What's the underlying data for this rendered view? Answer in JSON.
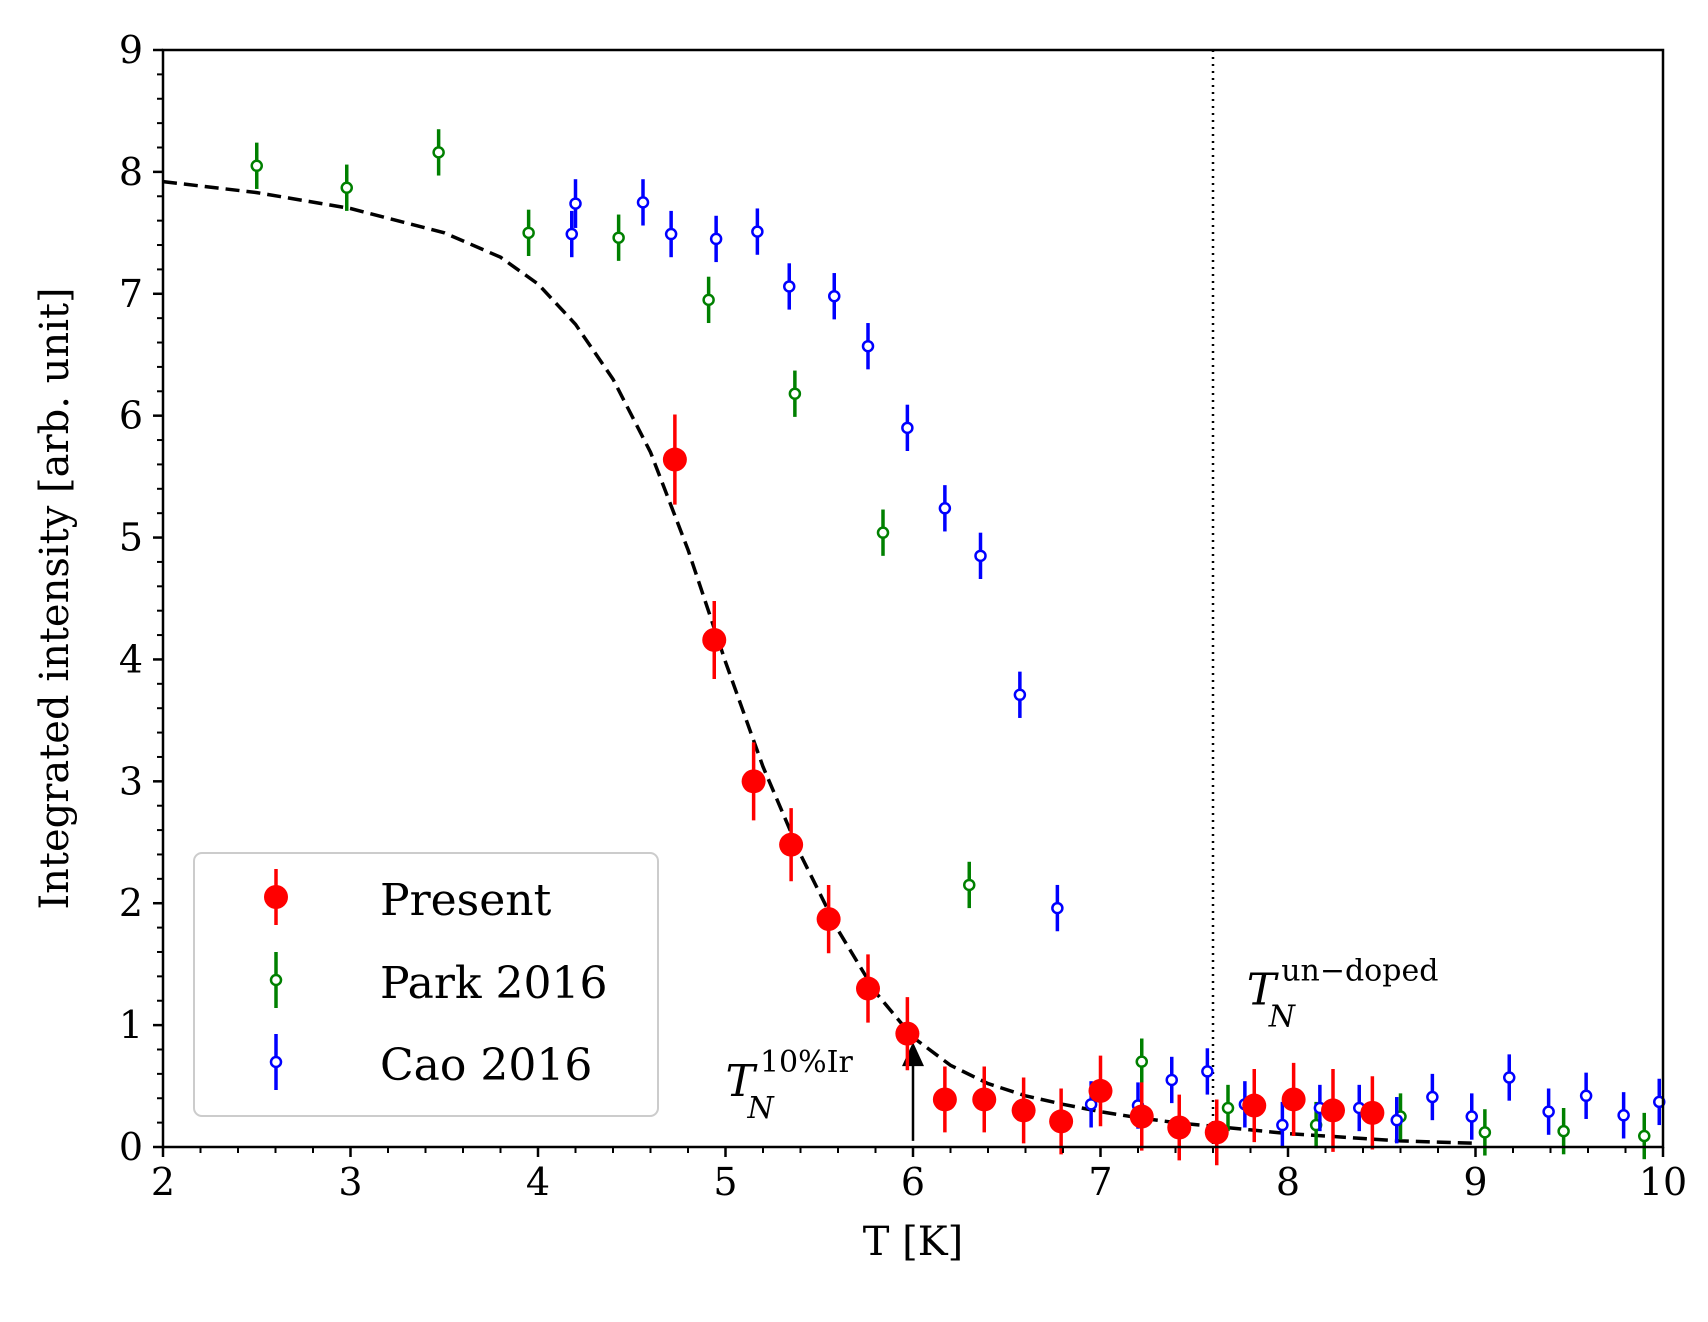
{
  "chart_data": {
    "type": "scatter",
    "title": "",
    "xlabel": "T [K]",
    "ylabel": "Integrated intensity [arb. unit]",
    "xlim": [
      2,
      10
    ],
    "ylim": [
      0,
      9
    ],
    "xticks": [
      2,
      3,
      4,
      5,
      6,
      7,
      8,
      9,
      10
    ],
    "yticks": [
      0,
      1,
      2,
      3,
      4,
      5,
      6,
      7,
      8,
      9
    ],
    "grid": false,
    "legend_position": "lower-left",
    "colors": {
      "present": "#ff0000",
      "park": "#008000",
      "cao": "#0000ff",
      "fit": "#000000",
      "vline": "#000000"
    },
    "series": [
      {
        "name": "Present",
        "marker": "filled-circle",
        "color": "#ff0000",
        "points": [
          {
            "x": 4.73,
            "y": 5.64,
            "err": 0.37
          },
          {
            "x": 4.94,
            "y": 4.16,
            "err": 0.32
          },
          {
            "x": 5.15,
            "y": 3.0,
            "err": 0.32
          },
          {
            "x": 5.35,
            "y": 2.48,
            "err": 0.3
          },
          {
            "x": 5.55,
            "y": 1.87,
            "err": 0.28
          },
          {
            "x": 5.76,
            "y": 1.3,
            "err": 0.28
          },
          {
            "x": 5.97,
            "y": 0.93,
            "err": 0.3
          },
          {
            "x": 6.17,
            "y": 0.39,
            "err": 0.27
          },
          {
            "x": 6.38,
            "y": 0.39,
            "err": 0.27
          },
          {
            "x": 6.59,
            "y": 0.3,
            "err": 0.27
          },
          {
            "x": 6.79,
            "y": 0.21,
            "err": 0.27
          },
          {
            "x": 7.0,
            "y": 0.46,
            "err": 0.29
          },
          {
            "x": 7.22,
            "y": 0.25,
            "err": 0.28
          },
          {
            "x": 7.42,
            "y": 0.16,
            "err": 0.27
          },
          {
            "x": 7.62,
            "y": 0.12,
            "err": 0.27
          },
          {
            "x": 7.82,
            "y": 0.34,
            "err": 0.3
          },
          {
            "x": 8.03,
            "y": 0.39,
            "err": 0.3
          },
          {
            "x": 8.24,
            "y": 0.3,
            "err": 0.34
          },
          {
            "x": 8.45,
            "y": 0.28,
            "err": 0.3
          }
        ]
      },
      {
        "name": "Park 2016",
        "marker": "open-circle",
        "color": "#008000",
        "points": [
          {
            "x": 2.5,
            "y": 8.05,
            "err": 0.19
          },
          {
            "x": 2.98,
            "y": 7.87,
            "err": 0.19
          },
          {
            "x": 3.47,
            "y": 8.16,
            "err": 0.19
          },
          {
            "x": 3.95,
            "y": 7.5,
            "err": 0.19
          },
          {
            "x": 4.43,
            "y": 7.46,
            "err": 0.19
          },
          {
            "x": 4.91,
            "y": 6.95,
            "err": 0.19
          },
          {
            "x": 5.37,
            "y": 6.18,
            "err": 0.19
          },
          {
            "x": 5.84,
            "y": 5.04,
            "err": 0.19
          },
          {
            "x": 6.3,
            "y": 2.15,
            "err": 0.19
          },
          {
            "x": 7.22,
            "y": 0.7,
            "err": 0.19
          },
          {
            "x": 7.68,
            "y": 0.32,
            "err": 0.19
          },
          {
            "x": 8.15,
            "y": 0.18,
            "err": 0.19
          },
          {
            "x": 8.6,
            "y": 0.25,
            "err": 0.19
          },
          {
            "x": 9.05,
            "y": 0.12,
            "err": 0.19
          },
          {
            "x": 9.47,
            "y": 0.13,
            "err": 0.19
          },
          {
            "x": 9.9,
            "y": 0.09,
            "err": 0.19
          }
        ]
      },
      {
        "name": "Cao 2016",
        "marker": "open-circle",
        "color": "#0000ff",
        "points": [
          {
            "x": 4.18,
            "y": 7.49,
            "err": 0.19
          },
          {
            "x": 4.2,
            "y": 7.74,
            "err": 0.2
          },
          {
            "x": 4.56,
            "y": 7.75,
            "err": 0.19
          },
          {
            "x": 4.71,
            "y": 7.49,
            "err": 0.19
          },
          {
            "x": 4.95,
            "y": 7.45,
            "err": 0.19
          },
          {
            "x": 5.17,
            "y": 7.51,
            "err": 0.19
          },
          {
            "x": 5.34,
            "y": 7.06,
            "err": 0.19
          },
          {
            "x": 5.58,
            "y": 6.98,
            "err": 0.19
          },
          {
            "x": 5.76,
            "y": 6.57,
            "err": 0.19
          },
          {
            "x": 5.97,
            "y": 5.9,
            "err": 0.19
          },
          {
            "x": 6.17,
            "y": 5.24,
            "err": 0.19
          },
          {
            "x": 6.36,
            "y": 4.85,
            "err": 0.19
          },
          {
            "x": 6.57,
            "y": 3.71,
            "err": 0.19
          },
          {
            "x": 6.77,
            "y": 1.96,
            "err": 0.19
          },
          {
            "x": 6.95,
            "y": 0.35,
            "err": 0.19
          },
          {
            "x": 7.2,
            "y": 0.34,
            "err": 0.19
          },
          {
            "x": 7.38,
            "y": 0.55,
            "err": 0.19
          },
          {
            "x": 7.57,
            "y": 0.62,
            "err": 0.19
          },
          {
            "x": 7.77,
            "y": 0.35,
            "err": 0.19
          },
          {
            "x": 7.97,
            "y": 0.18,
            "err": 0.19
          },
          {
            "x": 8.17,
            "y": 0.32,
            "err": 0.19
          },
          {
            "x": 8.38,
            "y": 0.32,
            "err": 0.19
          },
          {
            "x": 8.58,
            "y": 0.22,
            "err": 0.19
          },
          {
            "x": 8.77,
            "y": 0.41,
            "err": 0.19
          },
          {
            "x": 8.98,
            "y": 0.25,
            "err": 0.19
          },
          {
            "x": 9.18,
            "y": 0.57,
            "err": 0.19
          },
          {
            "x": 9.39,
            "y": 0.29,
            "err": 0.19
          },
          {
            "x": 9.59,
            "y": 0.42,
            "err": 0.19
          },
          {
            "x": 9.79,
            "y": 0.26,
            "err": 0.19
          },
          {
            "x": 9.98,
            "y": 0.37,
            "err": 0.19
          }
        ]
      }
    ],
    "fit_curve": {
      "style": "dashed",
      "x": [
        2.0,
        2.5,
        3.0,
        3.5,
        3.8,
        4.0,
        4.2,
        4.4,
        4.6,
        4.8,
        5.0,
        5.2,
        5.4,
        5.6,
        5.8,
        6.0,
        6.2,
        6.4,
        6.6,
        6.8,
        7.0,
        7.2,
        7.4,
        7.6,
        7.8,
        8.0,
        8.2,
        8.4,
        8.6,
        8.8,
        9.0
      ],
      "y": [
        7.92,
        7.83,
        7.7,
        7.5,
        7.3,
        7.08,
        6.75,
        6.3,
        5.7,
        4.9,
        3.98,
        3.12,
        2.4,
        1.78,
        1.27,
        0.9,
        0.67,
        0.52,
        0.42,
        0.35,
        0.29,
        0.24,
        0.2,
        0.17,
        0.14,
        0.11,
        0.09,
        0.07,
        0.05,
        0.04,
        0.03
      ]
    },
    "vertical_line": {
      "x": 7.6,
      "style": "dotted"
    },
    "annotations": {
      "tn_undoped": {
        "main": "T",
        "sub": "N",
        "sup": "un−doped",
        "x": 7.78,
        "y": 1.17
      },
      "tn_doped": {
        "main": "T",
        "sub": "N",
        "sup": "10%Ir",
        "x": 5.0,
        "y": 0.42
      },
      "arrow": {
        "x": 6.0,
        "y_from": 0.05,
        "y_to": 0.86
      }
    }
  }
}
